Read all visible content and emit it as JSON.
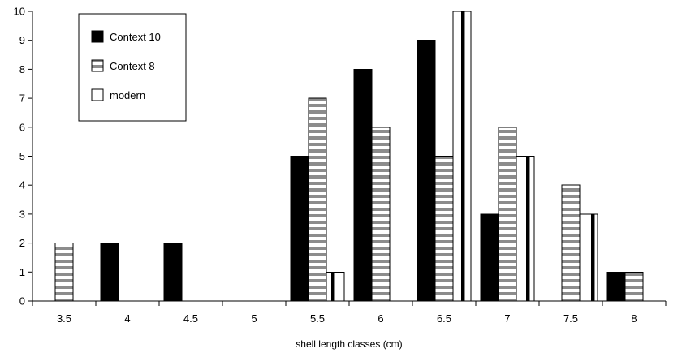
{
  "chart_data": {
    "type": "bar",
    "title": "",
    "xlabel": "shell length classes (cm)",
    "ylabel": "",
    "categories": [
      "3.5",
      "4",
      "4.5",
      "5",
      "5.5",
      "6",
      "6.5",
      "7",
      "7.5",
      "8"
    ],
    "series": [
      {
        "name": "Context 10",
        "pattern": "solid",
        "color": "#000000",
        "values": [
          0,
          2,
          2,
          0,
          5,
          8,
          9,
          3,
          0,
          1
        ]
      },
      {
        "name": "Context 8",
        "pattern": "horizontal-stripes",
        "color": "#8c8c8c",
        "values": [
          2,
          0,
          0,
          0,
          7,
          6,
          5,
          6,
          4,
          1
        ]
      },
      {
        "name": "modern",
        "pattern": "vertical-stripes",
        "color": "#000000",
        "values": [
          0,
          0,
          0,
          0,
          1,
          0,
          10,
          5,
          3,
          0
        ]
      }
    ],
    "yticks": [
      0,
      1,
      2,
      3,
      4,
      5,
      6,
      7,
      8,
      9,
      10
    ],
    "ylim": [
      0,
      10
    ],
    "grid": false,
    "legend": "top-left"
  }
}
